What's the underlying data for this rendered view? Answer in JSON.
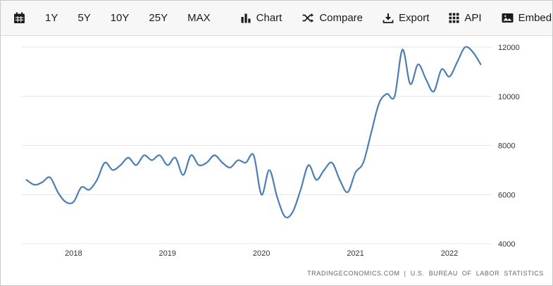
{
  "toolbar": {
    "calendar_icon": "calendar-icon",
    "range_buttons": [
      "1Y",
      "5Y",
      "10Y",
      "25Y",
      "MAX"
    ],
    "actions": [
      {
        "label": "Chart",
        "icon": "bar-chart-icon"
      },
      {
        "label": "Compare",
        "icon": "shuffle-icon"
      },
      {
        "label": "Export",
        "icon": "download-icon"
      },
      {
        "label": "API",
        "icon": "grid-icon"
      },
      {
        "label": "Embed",
        "icon": "image-icon"
      }
    ]
  },
  "footer": {
    "attribution": "TRADINGECONOMICS.COM  |  U.S. BUREAU OF LABOR STATISTICS"
  },
  "chart_data": {
    "type": "line",
    "title": "",
    "xlabel": "",
    "ylabel": "",
    "x": [
      "2017-07",
      "2017-08",
      "2017-09",
      "2017-10",
      "2017-11",
      "2017-12",
      "2018-01",
      "2018-02",
      "2018-03",
      "2018-04",
      "2018-05",
      "2018-06",
      "2018-07",
      "2018-08",
      "2018-09",
      "2018-10",
      "2018-11",
      "2018-12",
      "2019-01",
      "2019-02",
      "2019-03",
      "2019-04",
      "2019-05",
      "2019-06",
      "2019-07",
      "2019-08",
      "2019-09",
      "2019-10",
      "2019-11",
      "2019-12",
      "2020-01",
      "2020-02",
      "2020-03",
      "2020-04",
      "2020-05",
      "2020-06",
      "2020-07",
      "2020-08",
      "2020-09",
      "2020-10",
      "2020-11",
      "2020-12",
      "2021-01",
      "2021-02",
      "2021-03",
      "2021-04",
      "2021-05",
      "2021-06",
      "2021-07",
      "2021-08",
      "2021-09",
      "2021-10",
      "2021-11",
      "2021-12",
      "2022-01",
      "2022-02",
      "2022-03",
      "2022-04",
      "2022-05"
    ],
    "values": [
      6600,
      6400,
      6500,
      6700,
      6100,
      5700,
      5700,
      6300,
      6200,
      6600,
      7300,
      7000,
      7200,
      7500,
      7200,
      7600,
      7400,
      7600,
      7200,
      7500,
      6800,
      7600,
      7200,
      7300,
      7600,
      7300,
      7100,
      7400,
      7300,
      7600,
      6000,
      7000,
      5900,
      5100,
      5300,
      6200,
      7200,
      6600,
      7000,
      7300,
      6600,
      6100,
      6900,
      7300,
      8500,
      9700,
      10100,
      10000,
      11900,
      10500,
      11300,
      10700,
      10200,
      11100,
      10800,
      11400,
      12000,
      11800,
      11300
    ],
    "x_ticks": [
      2018,
      2019,
      2020,
      2021,
      2022
    ],
    "y_ticks": [
      4000,
      6000,
      8000,
      10000,
      12000
    ],
    "ylim": [
      4000,
      12000
    ],
    "x_range": [
      2017.45,
      2022.45
    ],
    "y_axis_side": "right",
    "grid": true,
    "legend": false,
    "line_color": "#4a7eb5",
    "grid_color": "#e6e6e6",
    "axis_color": "#333333"
  }
}
